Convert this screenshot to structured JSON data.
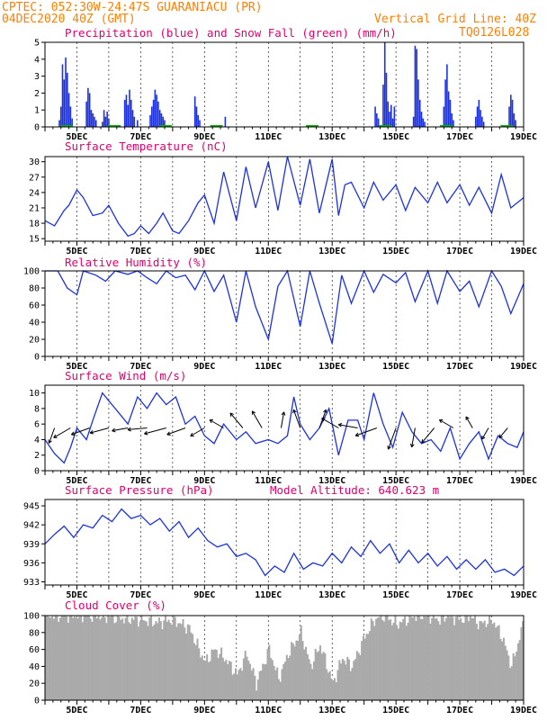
{
  "header": {
    "line1": "CPTEC:  052:30W-24:47S  GUARANIACU (PR)",
    "line2": "04DEC2020 40Z (GMT)",
    "grid_note": "Vertical Grid Line: 40Z",
    "code": "TQ0126L028"
  },
  "x_axis": {
    "start_day": 4.0,
    "end_day": 19.0,
    "tick_labels": [
      "5DEC",
      "7DEC",
      "9DEC",
      "11DEC",
      "13DEC",
      "15DEC",
      "17DEC",
      "19DEC"
    ],
    "tick_days": [
      5,
      7,
      9,
      11,
      13,
      15,
      17,
      19
    ]
  },
  "chart_data": [
    {
      "type": "bar",
      "title": "Precipitation (blue) and Snow Fall (green) (mm/h)",
      "ylim": [
        0,
        5
      ],
      "yticks": [
        "0",
        "1",
        "2",
        "3",
        "4",
        "5"
      ],
      "series": [
        {
          "name": "Precipitation",
          "color": "#1e32dc",
          "x": [
            4.45,
            4.5,
            4.55,
            4.6,
            4.65,
            4.7,
            4.75,
            4.8,
            4.85,
            5.3,
            5.35,
            5.4,
            5.45,
            5.5,
            5.55,
            5.6,
            5.8,
            5.85,
            5.9,
            5.95,
            6.0,
            6.5,
            6.55,
            6.6,
            6.65,
            6.7,
            6.75,
            6.8,
            6.9,
            7.3,
            7.35,
            7.4,
            7.45,
            7.5,
            7.55,
            7.6,
            7.65,
            7.7,
            7.75,
            8.7,
            8.75,
            8.8,
            8.85,
            9.65,
            14.35,
            14.4,
            14.45,
            14.6,
            14.65,
            14.7,
            14.75,
            14.8,
            14.85,
            14.9,
            14.95,
            15.55,
            15.6,
            15.65,
            15.7,
            15.75,
            15.8,
            15.85,
            15.9,
            16.5,
            16.55,
            16.6,
            16.65,
            16.7,
            16.75,
            16.8,
            17.5,
            17.55,
            17.6,
            17.65,
            17.7,
            17.75,
            18.55,
            18.6,
            18.65,
            18.7,
            18.75
          ],
          "values": [
            0.4,
            1.2,
            3.7,
            2.8,
            4.1,
            3.2,
            2.0,
            1.2,
            0.5,
            1.5,
            2.3,
            2.0,
            1.0,
            0.8,
            0.6,
            0.4,
            0.3,
            1.0,
            0.6,
            0.9,
            0.5,
            1.6,
            1.9,
            1.3,
            2.2,
            1.6,
            1.0,
            0.6,
            0.4,
            0.7,
            1.2,
            1.6,
            2.2,
            1.9,
            1.5,
            1.0,
            0.8,
            0.6,
            0.4,
            1.8,
            1.2,
            0.7,
            0.4,
            0.6,
            1.2,
            0.8,
            0.5,
            2.5,
            5.0,
            3.2,
            1.5,
            0.9,
            1.3,
            0.5,
            1.2,
            0.6,
            4.8,
            4.6,
            2.8,
            1.6,
            0.9,
            0.5,
            0.3,
            1.2,
            2.8,
            3.7,
            2.1,
            1.6,
            0.8,
            0.4,
            0.6,
            1.2,
            1.6,
            1.0,
            0.6,
            0.3,
            1.2,
            1.9,
            1.6,
            0.8,
            0.4
          ]
        },
        {
          "name": "Snow Fall",
          "color": "#00b400",
          "x": [
            4.5,
            6.0,
            7.6,
            9.2,
            12.2,
            14.5,
            16.4,
            18.3
          ],
          "values": [
            0.05,
            0.05,
            0.05,
            0.05,
            0.05,
            0.05,
            0.05,
            0.05
          ]
        }
      ]
    },
    {
      "type": "line",
      "title": "Surface Temperature (nC)",
      "ylim": [
        14.5,
        31
      ],
      "yticks": [
        "15",
        "18",
        "21",
        "24",
        "27",
        "30"
      ],
      "x": [
        4.0,
        4.3,
        4.6,
        4.75,
        5.0,
        5.2,
        5.5,
        5.8,
        6.0,
        6.3,
        6.6,
        6.8,
        7.0,
        7.25,
        7.5,
        7.7,
        8.0,
        8.2,
        8.5,
        8.8,
        9.0,
        9.3,
        9.6,
        10.0,
        10.3,
        10.6,
        11.0,
        11.3,
        11.6,
        12.0,
        12.3,
        12.6,
        13.0,
        13.2,
        13.4,
        13.6,
        14.0,
        14.3,
        14.6,
        15.0,
        15.3,
        15.6,
        16.0,
        16.3,
        16.6,
        17.0,
        17.3,
        17.6,
        18.0,
        18.3,
        18.6,
        19.0
      ],
      "values": [
        18.5,
        17.5,
        20.5,
        21.5,
        24.5,
        23.0,
        19.5,
        20.0,
        21.5,
        18.0,
        15.5,
        16.0,
        17.5,
        16.0,
        18.0,
        20.0,
        16.5,
        16.0,
        18.5,
        22.0,
        23.5,
        18.0,
        28.0,
        18.5,
        29.0,
        21.0,
        30.0,
        20.5,
        31.0,
        21.5,
        30.5,
        20.0,
        30.5,
        19.5,
        25.5,
        26.0,
        21.0,
        26.0,
        22.5,
        25.5,
        20.5,
        25.0,
        22.0,
        26.0,
        22.0,
        25.5,
        21.5,
        25.0,
        20.0,
        27.5,
        21.0,
        23.0
      ]
    },
    {
      "type": "line",
      "title": "Relative Humidity (%)",
      "ylim": [
        0,
        100
      ],
      "yticks": [
        "0",
        "20",
        "40",
        "60",
        "80",
        "100"
      ],
      "x": [
        4.0,
        4.4,
        4.7,
        5.0,
        5.2,
        5.6,
        5.9,
        6.2,
        6.6,
        6.9,
        7.2,
        7.5,
        7.8,
        8.1,
        8.4,
        8.7,
        9.0,
        9.3,
        9.6,
        10.0,
        10.3,
        10.6,
        11.0,
        11.3,
        11.6,
        12.0,
        12.3,
        12.6,
        13.0,
        13.3,
        13.6,
        14.0,
        14.3,
        14.6,
        15.0,
        15.3,
        15.6,
        16.0,
        16.3,
        16.6,
        17.0,
        17.3,
        17.6,
        18.0,
        18.3,
        18.6,
        19.0
      ],
      "values": [
        100,
        100,
        80,
        72,
        100,
        95,
        88,
        100,
        96,
        100,
        92,
        85,
        100,
        92,
        95,
        78,
        100,
        76,
        95,
        40,
        100,
        58,
        20,
        82,
        100,
        35,
        100,
        62,
        15,
        95,
        62,
        100,
        75,
        96,
        86,
        98,
        64,
        100,
        62,
        100,
        76,
        88,
        58,
        100,
        82,
        50,
        85
      ]
    },
    {
      "type": "line",
      "title": "Surface Wind (m/s)",
      "ylim": [
        0,
        11
      ],
      "yticks": [
        "0",
        "2",
        "4",
        "6",
        "8",
        "10"
      ],
      "x": [
        4.0,
        4.3,
        4.6,
        4.8,
        5.0,
        5.3,
        5.5,
        5.8,
        6.0,
        6.3,
        6.6,
        6.9,
        7.2,
        7.5,
        7.8,
        8.1,
        8.4,
        8.7,
        9.0,
        9.3,
        9.6,
        10.0,
        10.3,
        10.6,
        11.0,
        11.3,
        11.6,
        11.8,
        12.0,
        12.3,
        12.6,
        12.9,
        13.2,
        13.5,
        13.8,
        14.0,
        14.3,
        14.6,
        14.9,
        15.2,
        15.5,
        15.8,
        16.1,
        16.4,
        16.7,
        17.0,
        17.3,
        17.6,
        17.9,
        18.2,
        18.5,
        18.8,
        19.0
      ],
      "values": [
        4.0,
        2.2,
        1.0,
        3.0,
        5.5,
        4.0,
        6.5,
        10.0,
        9.0,
        7.5,
        6.0,
        9.5,
        8.0,
        10.0,
        8.5,
        9.5,
        6.0,
        7.0,
        4.5,
        3.5,
        6.0,
        4.0,
        5.0,
        3.5,
        4.0,
        3.5,
        4.5,
        9.5,
        6.0,
        4.0,
        5.5,
        8.0,
        2.0,
        6.5,
        6.5,
        4.0,
        10.0,
        6.0,
        3.0,
        7.5,
        5.0,
        3.5,
        4.0,
        2.5,
        5.5,
        1.5,
        3.5,
        5.0,
        1.5,
        4.5,
        3.5,
        3.0,
        5.0
      ],
      "arrows": [
        {
          "day": 4.3,
          "speed": 5,
          "dir": 200
        },
        {
          "day": 4.8,
          "speed": 6,
          "dir": 240
        },
        {
          "day": 5.4,
          "speed": 6,
          "dir": 250
        },
        {
          "day": 6.0,
          "speed": 6,
          "dir": 255
        },
        {
          "day": 6.6,
          "speed": 5,
          "dir": 260
        },
        {
          "day": 7.2,
          "speed": 6,
          "dir": 265
        },
        {
          "day": 7.8,
          "speed": 7,
          "dir": 255
        },
        {
          "day": 8.4,
          "speed": 6,
          "dir": 250
        },
        {
          "day": 9.0,
          "speed": 5,
          "dir": 240
        },
        {
          "day": 9.6,
          "speed": 5,
          "dir": 300
        },
        {
          "day": 10.2,
          "speed": 6,
          "dir": 320
        },
        {
          "day": 10.8,
          "speed": 6,
          "dir": 330
        },
        {
          "day": 11.4,
          "speed": 5,
          "dir": 10
        },
        {
          "day": 12.0,
          "speed": 6,
          "dir": 340
        },
        {
          "day": 12.6,
          "speed": 6,
          "dir": 20
        },
        {
          "day": 13.2,
          "speed": 6,
          "dir": 300
        },
        {
          "day": 13.8,
          "speed": 6,
          "dir": 280
        },
        {
          "day": 14.4,
          "speed": 7,
          "dir": 250
        },
        {
          "day": 15.0,
          "speed": 7,
          "dir": 200
        },
        {
          "day": 15.6,
          "speed": 6,
          "dir": 190
        },
        {
          "day": 16.2,
          "speed": 6,
          "dir": 220
        },
        {
          "day": 16.8,
          "speed": 5,
          "dir": 300
        },
        {
          "day": 17.4,
          "speed": 4,
          "dir": 330
        },
        {
          "day": 17.9,
          "speed": 4,
          "dir": 210
        },
        {
          "day": 18.5,
          "speed": 4,
          "dir": 220
        }
      ]
    },
    {
      "type": "line",
      "title": "Surface Pressure (hPa)",
      "annotation": "Model Altitude: 640.623 m",
      "ylim": [
        932.5,
        946
      ],
      "yticks": [
        "933",
        "936",
        "939",
        "942",
        "945"
      ],
      "x": [
        4.0,
        4.3,
        4.6,
        4.9,
        5.2,
        5.5,
        5.8,
        6.1,
        6.4,
        6.7,
        7.0,
        7.3,
        7.6,
        7.9,
        8.2,
        8.5,
        8.8,
        9.1,
        9.4,
        9.7,
        10.0,
        10.3,
        10.6,
        10.9,
        11.2,
        11.5,
        11.8,
        12.1,
        12.4,
        12.7,
        13.0,
        13.3,
        13.6,
        13.9,
        14.2,
        14.5,
        14.8,
        15.1,
        15.4,
        15.7,
        16.0,
        16.3,
        16.6,
        16.9,
        17.2,
        17.5,
        17.8,
        18.1,
        18.4,
        18.7,
        19.0
      ],
      "values": [
        939.0,
        940.5,
        941.8,
        940.0,
        942.0,
        941.5,
        943.5,
        942.5,
        944.5,
        943.0,
        943.5,
        942.0,
        943.0,
        941.0,
        942.5,
        940.0,
        941.5,
        939.5,
        938.5,
        939.0,
        937.0,
        937.5,
        936.5,
        934.0,
        935.5,
        934.5,
        937.5,
        935.0,
        936.0,
        935.5,
        937.5,
        936.0,
        938.5,
        937.0,
        939.5,
        937.5,
        939.0,
        936.0,
        938.0,
        936.0,
        937.5,
        935.5,
        937.0,
        935.0,
        936.5,
        935.0,
        936.5,
        934.5,
        935.0,
        934.0,
        935.5
      ]
    },
    {
      "type": "bar",
      "title": "Cloud Cover (%)",
      "ylim": [
        0,
        100
      ],
      "yticks": [
        "0",
        "20",
        "40",
        "60",
        "80",
        "100"
      ],
      "color": "#aaaaaa",
      "profile_x": [
        4.0,
        4.5,
        5.0,
        5.5,
        6.0,
        6.5,
        7.0,
        7.5,
        8.0,
        8.5,
        8.8,
        9.0,
        9.3,
        9.6,
        10.0,
        10.3,
        10.6,
        11.0,
        11.3,
        11.6,
        12.0,
        12.3,
        12.6,
        13.0,
        13.3,
        13.6,
        14.0,
        14.3,
        14.6,
        15.0,
        15.3,
        15.6,
        16.0,
        16.3,
        16.6,
        17.0,
        17.3,
        17.6,
        18.0,
        18.3,
        18.6,
        19.0
      ],
      "profile_values": [
        100,
        100,
        100,
        100,
        98,
        96,
        95,
        92,
        95,
        85,
        60,
        45,
        60,
        50,
        30,
        55,
        20,
        60,
        25,
        55,
        80,
        40,
        65,
        20,
        50,
        40,
        75,
        95,
        100,
        90,
        95,
        100,
        100,
        95,
        100,
        95,
        100,
        90,
        95,
        75,
        40,
        95
      ]
    }
  ]
}
